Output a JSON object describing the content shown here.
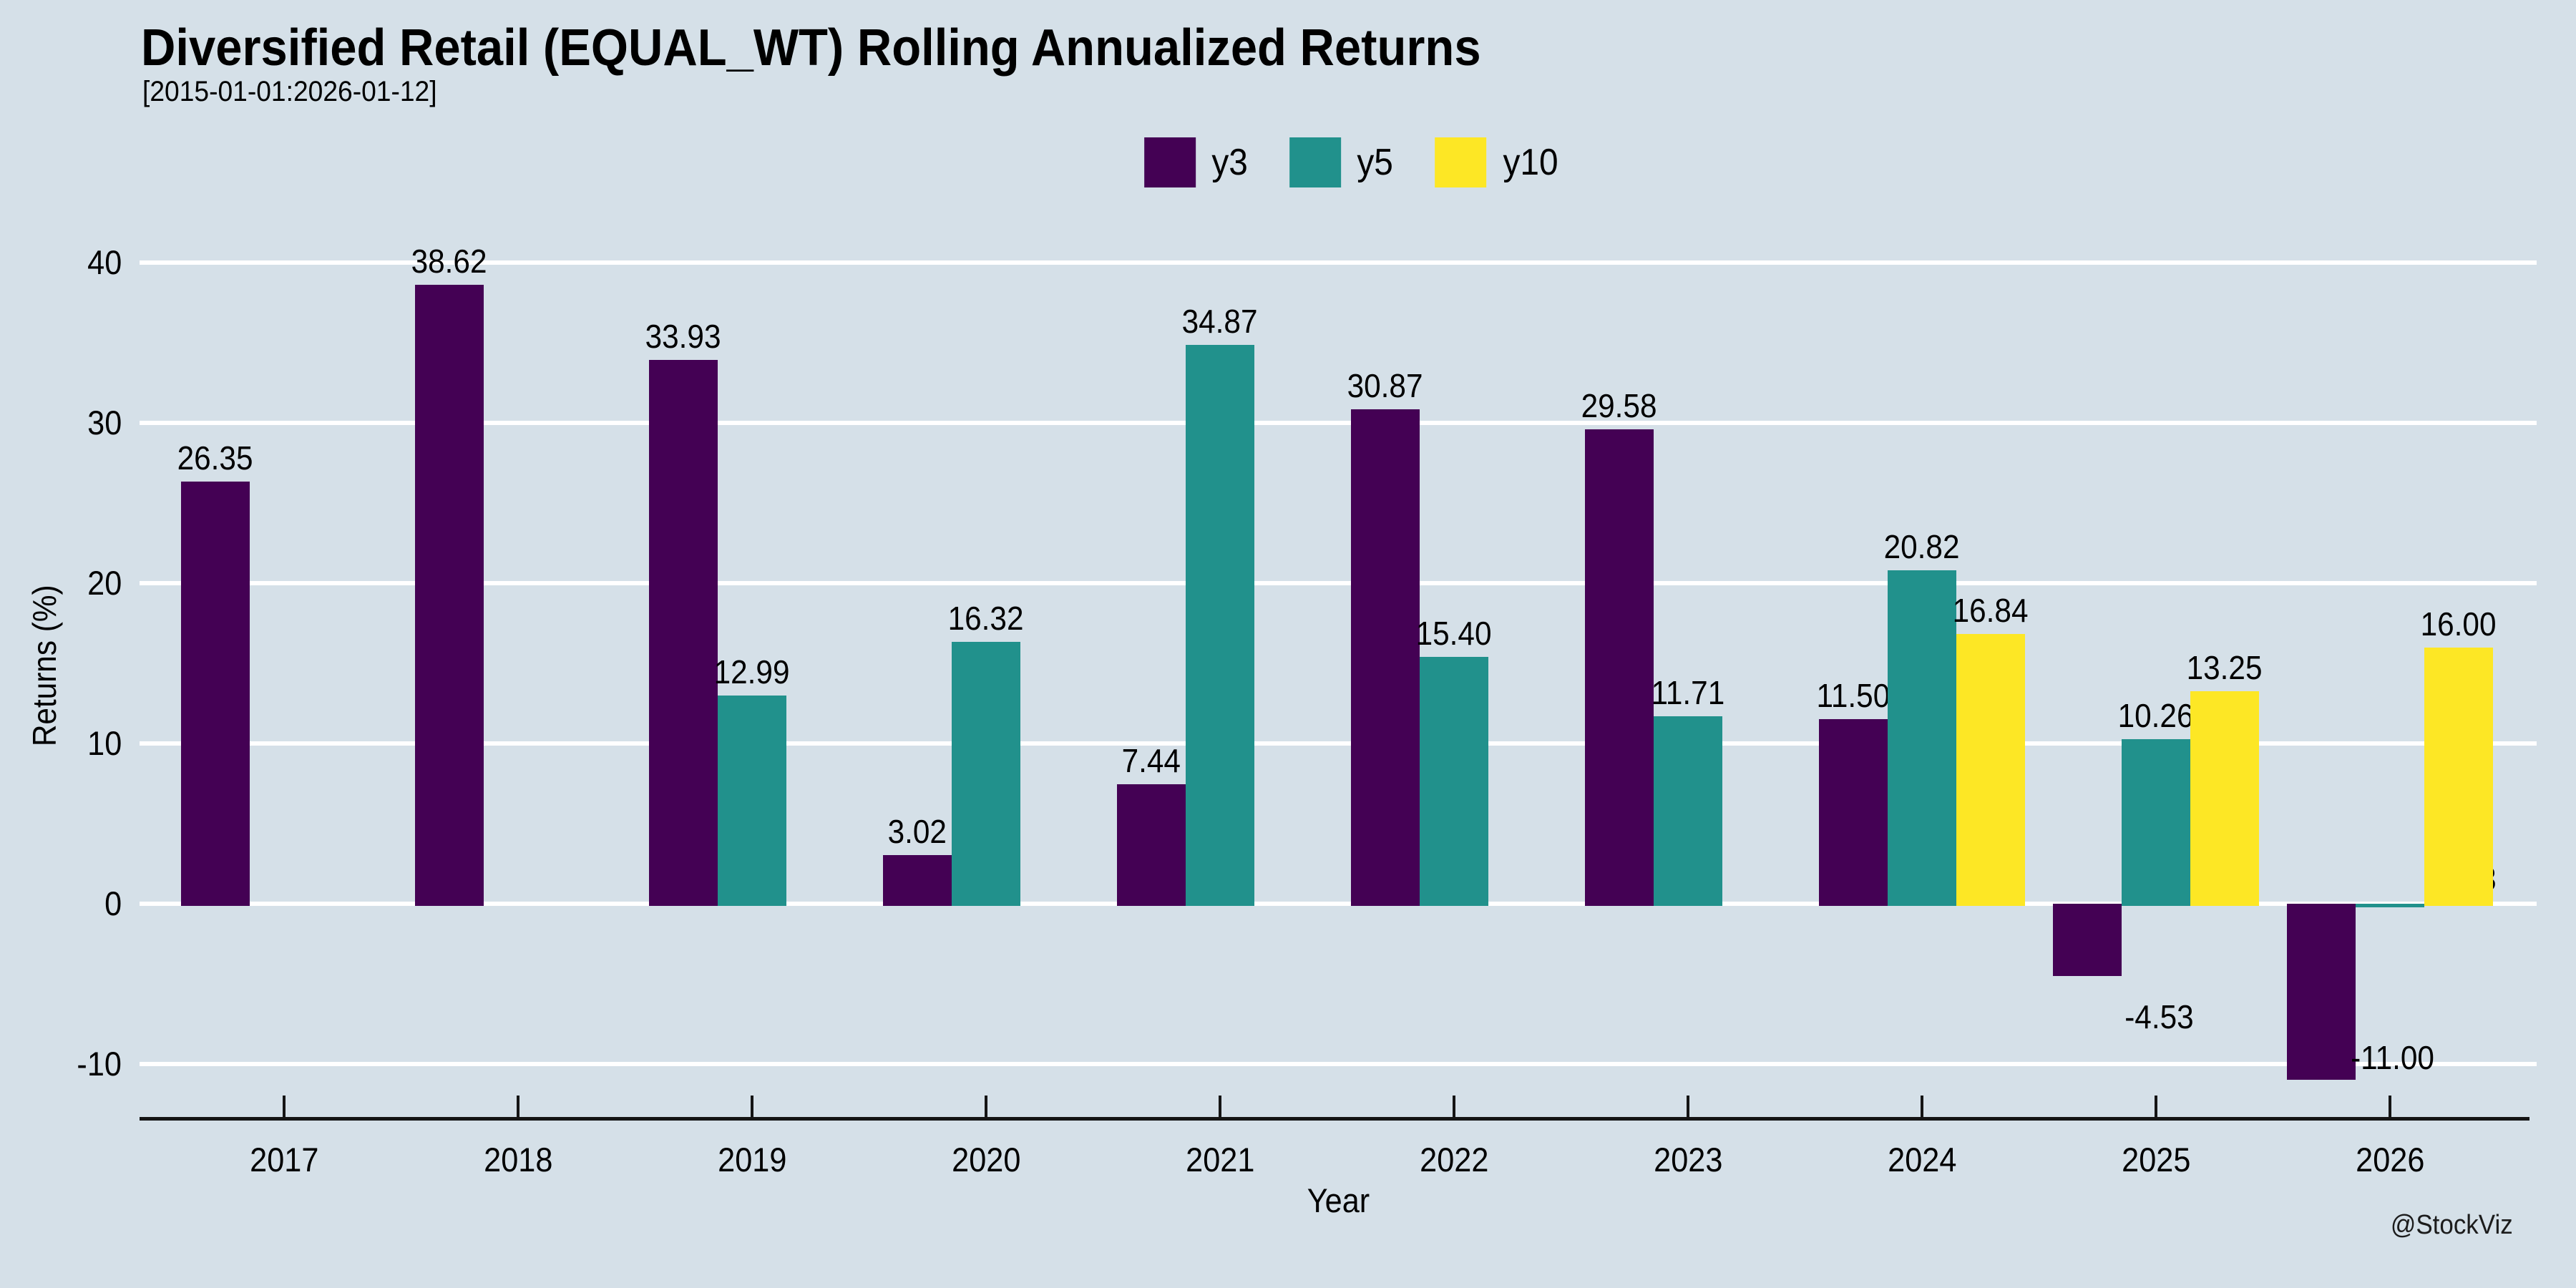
{
  "page": {
    "background": "#d5e0e8",
    "text_color": "#000000",
    "gridline_color": "#ffffff",
    "axis_color": "#151515"
  },
  "chart_data": {
    "type": "bar",
    "title": "Diversified Retail (EQUAL_WT) Rolling Annualized Returns",
    "subtitle": "[2015-01-01:2026-01-12]",
    "xlabel": "Year",
    "ylabel": "Returns (%)",
    "watermark": "@StockViz",
    "categories": [
      "2017",
      "2018",
      "2019",
      "2020",
      "2021",
      "2022",
      "2023",
      "2024",
      "2025",
      "2026"
    ],
    "series": [
      {
        "name": "y3",
        "color": "#440154",
        "values": [
          26.35,
          38.62,
          33.93,
          3.02,
          7.44,
          30.87,
          29.58,
          11.5,
          -4.53,
          -11.0
        ]
      },
      {
        "name": "y5",
        "color": "#21918c",
        "values": [
          null,
          null,
          12.99,
          16.32,
          34.87,
          15.4,
          11.71,
          20.82,
          10.26,
          -0.23
        ]
      },
      {
        "name": "y10",
        "color": "#fde725",
        "values": [
          null,
          null,
          null,
          null,
          null,
          null,
          null,
          16.84,
          13.25,
          16.0
        ]
      }
    ],
    "yticks": [
      40,
      30,
      20,
      10,
      0,
      -10
    ],
    "ylim": [
      -13.3,
      43.4
    ],
    "grid": "horizontal-white",
    "legend_position": "top-center",
    "value_label_format": "0.00"
  }
}
